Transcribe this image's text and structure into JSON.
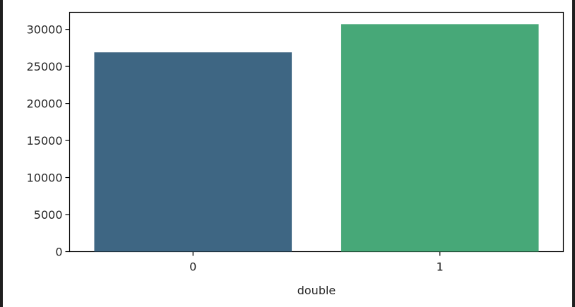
{
  "chart_data": {
    "type": "bar",
    "categories": [
      "0",
      "1"
    ],
    "values": [
      26900,
      30700
    ],
    "colors": [
      "#3e6683",
      "#47a878"
    ],
    "xlabel": "double",
    "ylabel": "",
    "ylim": [
      0,
      32300
    ],
    "yticks": [
      0,
      5000,
      10000,
      15000,
      20000,
      25000,
      30000
    ],
    "grid": false
  }
}
